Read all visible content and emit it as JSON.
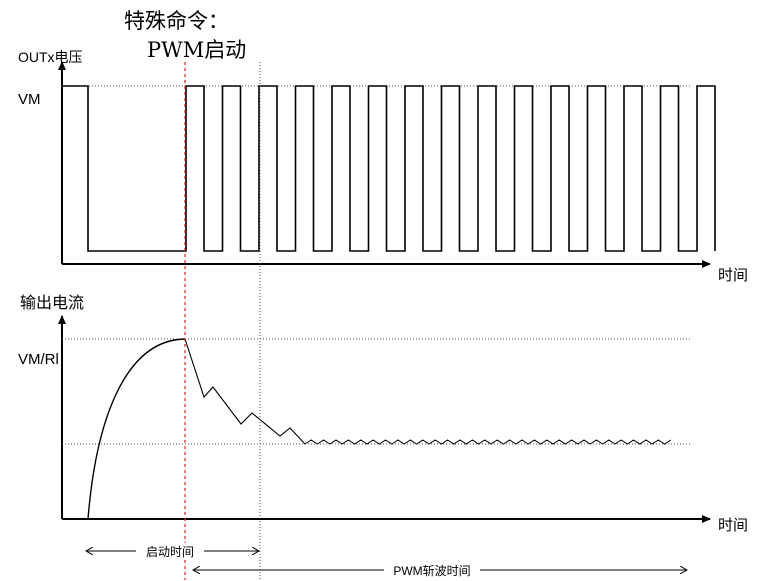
{
  "annotation": {
    "line1": "特殊命令：",
    "line2": "PWM启动"
  },
  "top_plot": {
    "y_axis_label": "OUTx电压",
    "level_label": "VM",
    "x_axis_label": "时间"
  },
  "bottom_plot": {
    "y_axis_label": "输出电流",
    "level_label": "VM/Rl",
    "x_axis_label": "时间"
  },
  "intervals": {
    "startup_label": "启动时间",
    "pwm_label": "PWM斩波时间"
  },
  "colors": {
    "trace": "#000000",
    "pwm_start_marker": "#e02020",
    "guide": "#555555",
    "background": "#ffffff"
  }
}
